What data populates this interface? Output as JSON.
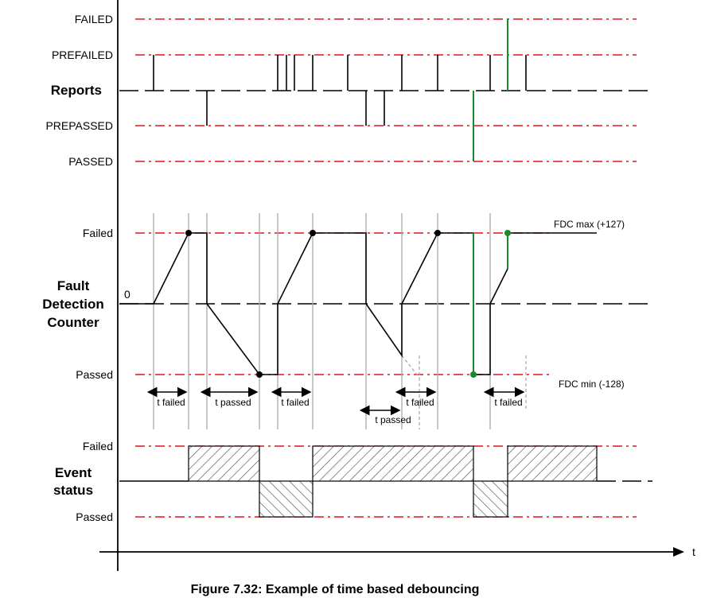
{
  "reports": {
    "section_label": "Reports",
    "levels": {
      "failed": "FAILED",
      "prefailed": "PREFAILED",
      "prepassed": "PREPASSED",
      "passed": "PASSED"
    }
  },
  "fdc": {
    "section_label": [
      "Fault",
      "Detection",
      "Counter"
    ],
    "levels": {
      "failed": "Failed",
      "zero": "0",
      "passed": "Passed"
    },
    "max_label": "FDC max (+127)",
    "min_label": "FDC min (-128)",
    "intervals": [
      {
        "label": "t failed"
      },
      {
        "label": "t passed"
      },
      {
        "label": "t failed"
      },
      {
        "label": "t passed"
      },
      {
        "label": "t failed"
      },
      {
        "label": "t failed"
      }
    ]
  },
  "event_status": {
    "section_label": [
      "Event",
      "status"
    ],
    "levels": {
      "failed": "Failed",
      "passed": "Passed"
    }
  },
  "axis": {
    "time_label": "t"
  },
  "caption": "Figure 7.32: Example of time based debouncing",
  "colors": {
    "threshold": "#e0141e",
    "highlight": "#1a8a2e",
    "marker": "#aaaaaa",
    "trace": "#000000"
  }
}
